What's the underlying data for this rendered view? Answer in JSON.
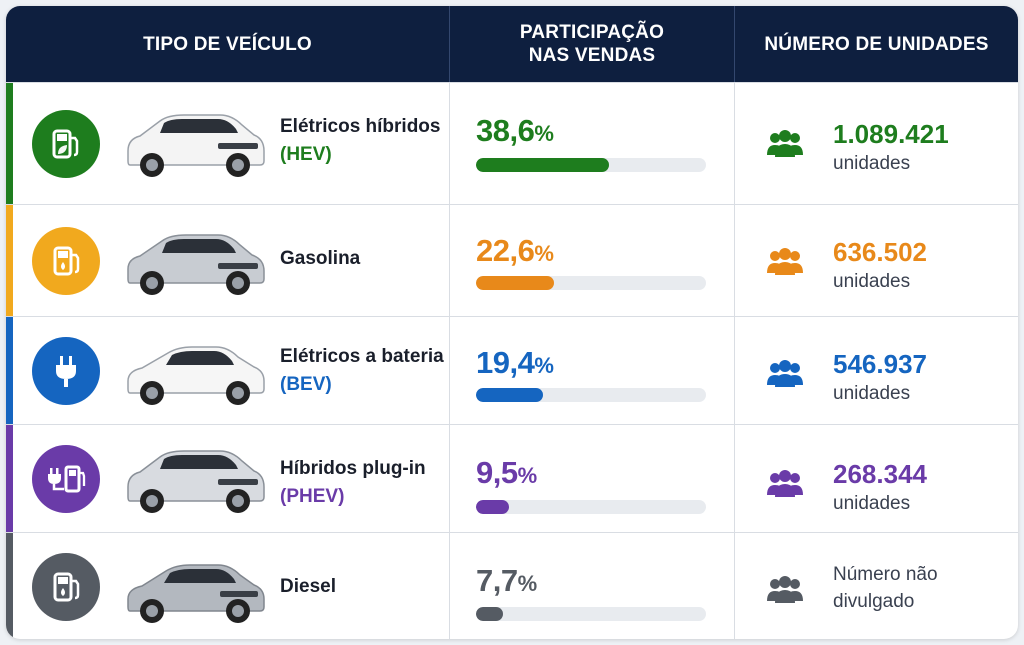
{
  "header": {
    "col1": "TIPO DE VEÍCULO",
    "col2_line1": "PARTICIPAÇÃO",
    "col2_line2": "NAS VENDAS",
    "col3": "NÚMERO DE UNIDADES"
  },
  "rows": [
    {
      "name": "Elétricos híbridos",
      "abbr": "(HEV)",
      "share": "38,6",
      "share_value": 38.6,
      "unit_sign": "%",
      "units": "1.089.421",
      "units_label": "unidades",
      "color": "#1e7d1e",
      "icon": "fuel-pump-leaf-icon",
      "car_color": "#f4f4f4"
    },
    {
      "name": "Gasolina",
      "abbr": "",
      "share": "22,6",
      "share_value": 22.6,
      "unit_sign": "%",
      "units": "636.502",
      "units_label": "unidades",
      "color": "#e8891a",
      "icon_bg": "#f1a91e",
      "icon": "fuel-pump-icon",
      "car_color": "#c8ccd2"
    },
    {
      "name": "Elétricos a bateria",
      "abbr": "(BEV)",
      "share": "19,4",
      "share_value": 19.4,
      "unit_sign": "%",
      "units": "546.937",
      "units_label": "unidades",
      "color": "#1565c0",
      "icon": "plug-icon",
      "car_color": "#f6f6f6"
    },
    {
      "name": "Híbridos plug-in",
      "abbr": "(PHEV)",
      "share": "9,5",
      "share_value": 9.5,
      "unit_sign": "%",
      "units": "268.344",
      "units_label": "unidades",
      "color": "#6a3ba8",
      "icon": "plug-fuel-pump-icon",
      "car_color": "#d8dbe0"
    },
    {
      "name": "Diesel",
      "abbr": "",
      "share": "7,7",
      "share_value": 7.7,
      "unit_sign": "%",
      "units_line1": "Número não",
      "units_line2": "divulgado",
      "color": "#555b63",
      "icon": "fuel-pump-drop-icon",
      "car_color": "#b3b8bf"
    }
  ]
}
